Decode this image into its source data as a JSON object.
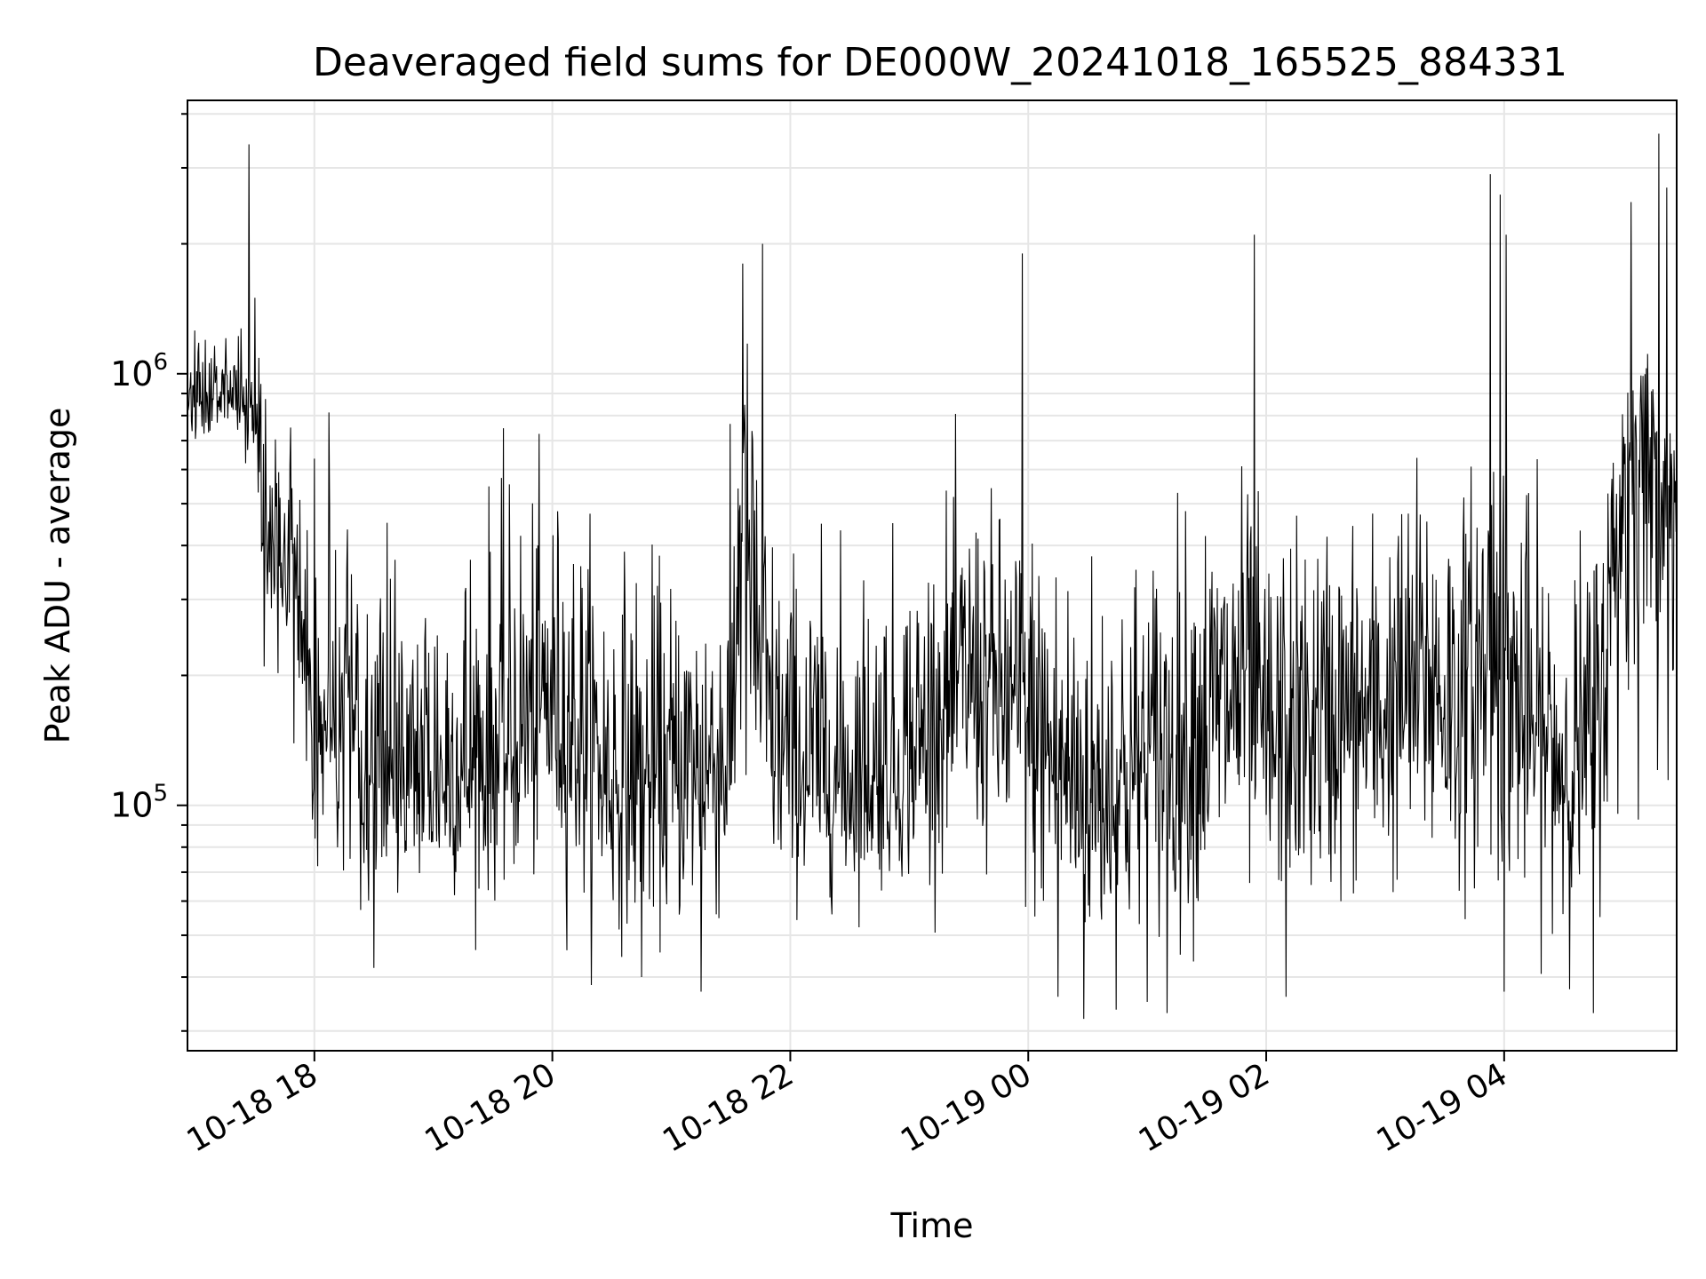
{
  "chart_data": {
    "type": "line",
    "title": "Deaveraged field sums for DE000W_20241018_165525_884331",
    "xlabel": "Time",
    "ylabel": "Peak ADU - average",
    "yscale": "log",
    "xlim": [
      "2024-10-18 16:56",
      "2024-10-19 05:27"
    ],
    "ylim": [
      27000,
      4300000
    ],
    "grid": true,
    "line_color": "#000000",
    "x_ticks": [
      {
        "time": "2024-10-18 18:00",
        "label": "10-18 18"
      },
      {
        "time": "2024-10-18 20:00",
        "label": "10-18 20"
      },
      {
        "time": "2024-10-18 22:00",
        "label": "10-18 22"
      },
      {
        "time": "2024-10-19 00:00",
        "label": "10-19 00"
      },
      {
        "time": "2024-10-19 02:00",
        "label": "10-19 02"
      },
      {
        "time": "2024-10-19 04:00",
        "label": "10-19 04"
      }
    ],
    "y_ticks": [
      {
        "value": 100000,
        "base": "10",
        "exp": "5"
      },
      {
        "value": 1000000,
        "base": "10",
        "exp": "6"
      }
    ],
    "series": [
      {
        "sample_interval_minutes": 1,
        "x_start": "2024-10-18 16:56",
        "x_end": "2024-10-19 05:27",
        "envelope_x": [
          "16:56",
          "17:10",
          "17:20",
          "17:30",
          "17:35",
          "17:45",
          "18:00",
          "18:30",
          "19:00",
          "19:30",
          "20:00",
          "20:30",
          "21:00",
          "21:30",
          "21:35",
          "21:50",
          "22:00",
          "22:30",
          "23:00",
          "23:30",
          "23:45",
          "00:00",
          "00:30",
          "01:00",
          "01:30",
          "01:50",
          "02:00",
          "02:30",
          "03:00",
          "03:20",
          "03:40",
          "03:55",
          "04:10",
          "04:30",
          "04:45",
          "05:00",
          "05:10",
          "05:25"
        ],
        "median_y": [
          850000,
          900000,
          950000,
          850000,
          400000,
          420000,
          180000,
          120000,
          110000,
          120000,
          180000,
          110000,
          110000,
          130000,
          500000,
          140000,
          120000,
          110000,
          120000,
          200000,
          180000,
          150000,
          100000,
          120000,
          150000,
          200000,
          130000,
          150000,
          160000,
          200000,
          160000,
          250000,
          150000,
          120000,
          130000,
          600000,
          800000,
          500000
        ],
        "low_y": [
          620000,
          680000,
          700000,
          600000,
          180000,
          200000,
          55000,
          50000,
          55000,
          55000,
          55000,
          45000,
          45000,
          45000,
          60000,
          55000,
          55000,
          55000,
          60000,
          65000,
          55000,
          45000,
          35000,
          40000,
          45000,
          45000,
          50000,
          50000,
          55000,
          50000,
          55000,
          50000,
          50000,
          45000,
          50000,
          80000,
          120000,
          160000
        ],
        "high_y": [
          1300000,
          1600000,
          1500000,
          1400000,
          1000000,
          950000,
          800000,
          750000,
          650000,
          700000,
          650000,
          500000,
          450000,
          550000,
          2000000,
          600000,
          500000,
          480000,
          520000,
          650000,
          600000,
          600000,
          500000,
          550000,
          650000,
          700000,
          550000,
          600000,
          600000,
          800000,
          700000,
          1200000,
          700000,
          500000,
          550000,
          1200000,
          1300000,
          900000
        ],
        "spikes": [
          {
            "x": "17:27",
            "y": 3400000
          },
          {
            "x": "17:30",
            "y": 1500000
          },
          {
            "x": "21:36",
            "y": 1800000
          },
          {
            "x": "21:46",
            "y": 2000000
          },
          {
            "x": "23:57",
            "y": 1900000
          },
          {
            "x": "01:54",
            "y": 2100000
          },
          {
            "x": "03:53",
            "y": 2900000
          },
          {
            "x": "03:58",
            "y": 2600000
          },
          {
            "x": "04:01",
            "y": 2100000
          },
          {
            "x": "05:04",
            "y": 2500000
          },
          {
            "x": "05:18",
            "y": 3600000
          },
          {
            "x": "05:22",
            "y": 2700000
          }
        ],
        "dips": [
          {
            "x": "18:30",
            "y": 42000
          },
          {
            "x": "20:45",
            "y": 40000
          },
          {
            "x": "21:15",
            "y": 37000
          },
          {
            "x": "00:15",
            "y": 36000
          },
          {
            "x": "00:28",
            "y": 32000
          },
          {
            "x": "01:10",
            "y": 33000
          },
          {
            "x": "02:10",
            "y": 36000
          },
          {
            "x": "04:00",
            "y": 37000
          },
          {
            "x": "04:45",
            "y": 33000
          }
        ]
      }
    ]
  }
}
